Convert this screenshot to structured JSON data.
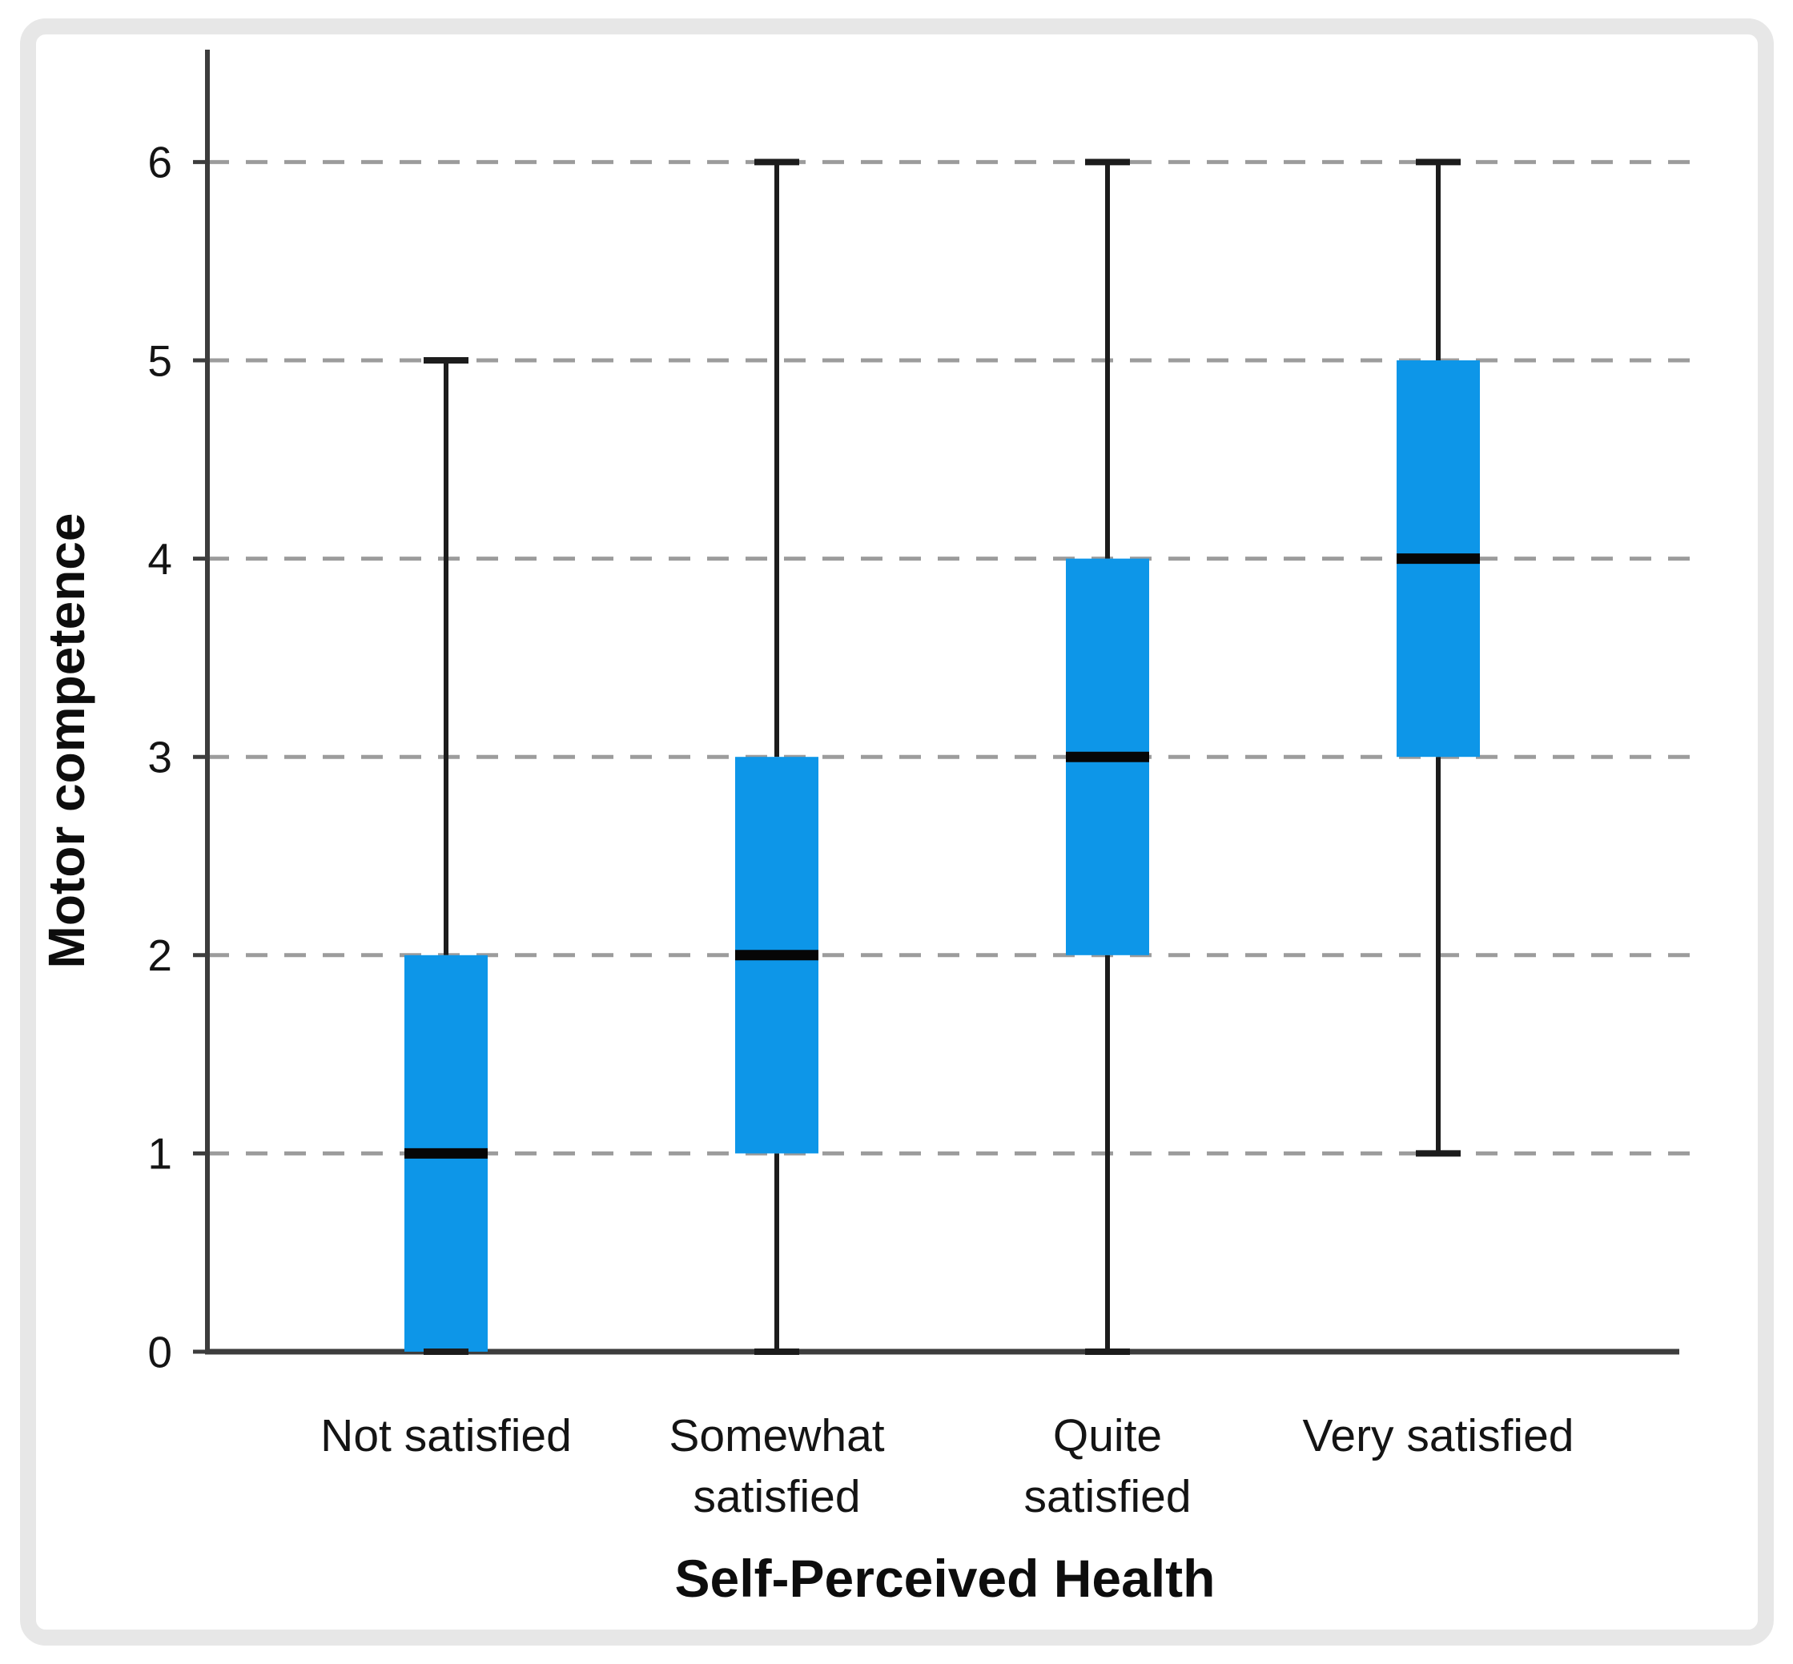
{
  "chart_data": {
    "type": "boxplot",
    "title": "",
    "xlabel": "Self-Perceived Health",
    "ylabel": "Motor competence",
    "categories": [
      "Not satisfied",
      "Somewhat satisfied",
      "Quite satisfied",
      "Very satisfied"
    ],
    "category_label_lines": [
      [
        "Not satisfied"
      ],
      [
        "Somewhat",
        "satisfied"
      ],
      [
        "Quite",
        "satisfied"
      ],
      [
        "Very satisfied"
      ]
    ],
    "y_ticks": [
      "0",
      "1",
      "2",
      "3",
      "4",
      "5",
      "6"
    ],
    "ylim": [
      0,
      6.6
    ],
    "grid": {
      "horizontal_dashed_at": [
        1,
        2,
        3,
        4,
        5,
        6
      ]
    },
    "legend": "none",
    "series": [
      {
        "category": "Not satisfied",
        "whisker_low": 0,
        "q1": 0,
        "median": 1,
        "q3": 2,
        "whisker_high": 5
      },
      {
        "category": "Somewhat satisfied",
        "whisker_low": 0,
        "q1": 1,
        "median": 2,
        "q3": 3,
        "whisker_high": 6
      },
      {
        "category": "Quite satisfied",
        "whisker_low": 0,
        "q1": 2,
        "median": 3,
        "q3": 4,
        "whisker_high": 6
      },
      {
        "category": "Very satisfied",
        "whisker_low": 1,
        "q1": 3,
        "median": 4,
        "q3": 5,
        "whisker_high": 6
      }
    ],
    "colors": {
      "box_fill": "#0D96E8",
      "median": "#060606",
      "whisker": "#1c1c1c",
      "gridline": "#9c9c9c",
      "axis": "#3d3d3d",
      "text": "#141414",
      "card_border": "#e7e7e7",
      "background": "#ffffff"
    }
  }
}
